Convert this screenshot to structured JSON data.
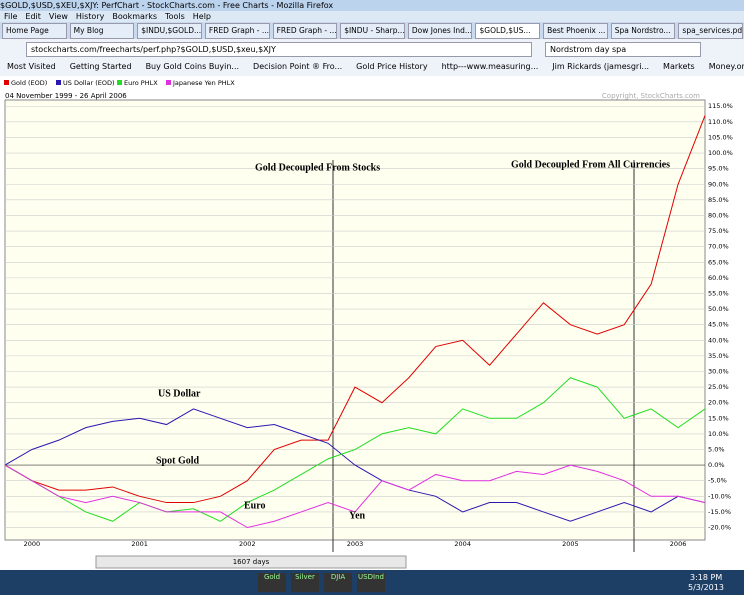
{
  "browser": {
    "window_title": "$GOLD,$USD,$XEU,$XJY: PerfChart - StockCharts.com - Free Charts - Mozilla Firefox",
    "menu": [
      "File",
      "Edit",
      "View",
      "History",
      "Bookmarks",
      "Tools",
      "Help"
    ],
    "tabs": [
      "Home Page",
      "My Blog",
      "$INDU,$GOLD...",
      "FRED Graph - ...",
      "FRED Graph - ...",
      "$INDU - Sharp...",
      "Dow Jones Ind...",
      "$GOLD,$US...",
      "Best Phoenix ...",
      "Spa Nordstro...",
      "spa_services.pdf"
    ],
    "url": "stockcharts.com/freecharts/perf.php?$GOLD,$USD,$xeu,$XJY",
    "search": "Nordstrom day spa",
    "bookmarks": [
      "Most Visited",
      "Getting Started",
      "Buy Gold Coins Buyin...",
      "Decision Point ® Fro...",
      "Gold Price History",
      "http---www.measuring...",
      "Jim Rickards (jamesgri...",
      "Markets",
      "Money.org - Money Org"
    ],
    "scroll_label": "1607 days",
    "taskbar": {
      "tickers": [
        "Gold",
        "Silver",
        "DJIA",
        "USDInd"
      ],
      "time": "3:18 PM",
      "date": "5/3/2013"
    }
  },
  "chart_data": {
    "type": "line",
    "date_range": "04 November 1999 - 26 April 2006",
    "copyright": "Copyright, StockCharts.com",
    "categories": [
      null,
      "2000",
      null,
      null,
      null,
      "2001",
      null,
      null,
      null,
      "2002",
      null,
      null,
      null,
      "2003",
      null,
      null,
      null,
      "2004",
      null,
      null,
      null,
      "2005",
      null,
      null,
      null,
      "2006",
      null
    ],
    "series": [
      {
        "name": "Gold (EOD)",
        "color": "#e00000",
        "values": [
          0,
          -5,
          -8,
          -8,
          -7,
          -10,
          -12,
          -12,
          -10,
          -5,
          5,
          8,
          8,
          25,
          20,
          28,
          38,
          40,
          32,
          42,
          52,
          45,
          42,
          45,
          58,
          90,
          112
        ]
      },
      {
        "name": "US Dollar (EOD)",
        "color": "#2a18b0",
        "values": [
          0,
          5,
          8,
          12,
          14,
          15,
          13,
          18,
          15,
          12,
          13,
          10,
          7,
          0,
          -5,
          -8,
          -10,
          -15,
          -12,
          -12,
          -15,
          -18,
          -15,
          -12,
          -15,
          -10,
          -12
        ]
      },
      {
        "name": "Euro PHLX",
        "color": "#22dd22",
        "values": [
          0,
          -5,
          -10,
          -15,
          -18,
          -12,
          -15,
          -14,
          -18,
          -12,
          -8,
          -3,
          2,
          5,
          10,
          12,
          10,
          18,
          15,
          15,
          20,
          28,
          25,
          15,
          18,
          12,
          18
        ]
      },
      {
        "name": "Japanese Yen PHLX",
        "color": "#e030e0",
        "values": [
          0,
          -5,
          -10,
          -12,
          -10,
          -12,
          -15,
          -15,
          -15,
          -20,
          -18,
          -15,
          -12,
          -15,
          -5,
          -8,
          -3,
          -5,
          -5,
          -2,
          -3,
          0,
          -2,
          -5,
          -10,
          -10,
          -12
        ]
      }
    ],
    "ylim": [
      -24,
      117
    ],
    "yticks": [
      {
        "value": 115,
        "label": "115.0%"
      },
      {
        "value": 110,
        "label": "110.0%"
      },
      {
        "value": 105,
        "label": "105.0%"
      },
      {
        "value": 100,
        "label": "100.0%"
      },
      {
        "value": 95,
        "label": "95.0%"
      },
      {
        "value": 90,
        "label": "90.0%"
      },
      {
        "value": 85,
        "label": "85.0%"
      },
      {
        "value": 80,
        "label": "80.0%"
      },
      {
        "value": 75,
        "label": "75.0%"
      },
      {
        "value": 70,
        "label": "70.0%"
      },
      {
        "value": 65,
        "label": "65.0%"
      },
      {
        "value": 60,
        "label": "60.0%"
      },
      {
        "value": 55,
        "label": "55.0%"
      },
      {
        "value": 50,
        "label": "50.0%"
      },
      {
        "value": 45,
        "label": "45.0%"
      },
      {
        "value": 40,
        "label": "40.0%"
      },
      {
        "value": 35,
        "label": "35.0%"
      },
      {
        "value": 30,
        "label": "30.0%"
      },
      {
        "value": 25,
        "label": "25.0%"
      },
      {
        "value": 20,
        "label": "20.0%"
      },
      {
        "value": 15,
        "label": "15.0%"
      },
      {
        "value": 10,
        "label": "10.0%"
      },
      {
        "value": 5,
        "label": "5.0%"
      },
      {
        "value": 0,
        "label": "0.0%"
      },
      {
        "value": -5,
        "label": "-5.0%"
      },
      {
        "value": -10,
        "label": "-10.0%"
      },
      {
        "value": -15,
        "label": "-15.0%"
      },
      {
        "value": -20,
        "label": "-20.0%"
      }
    ],
    "grid": true,
    "annotations": [
      "Gold Decoupled From Stocks",
      "Gold Decoupled From All Currencies",
      "US Dollar",
      "Spot Gold",
      "Euro",
      "Yen"
    ]
  }
}
